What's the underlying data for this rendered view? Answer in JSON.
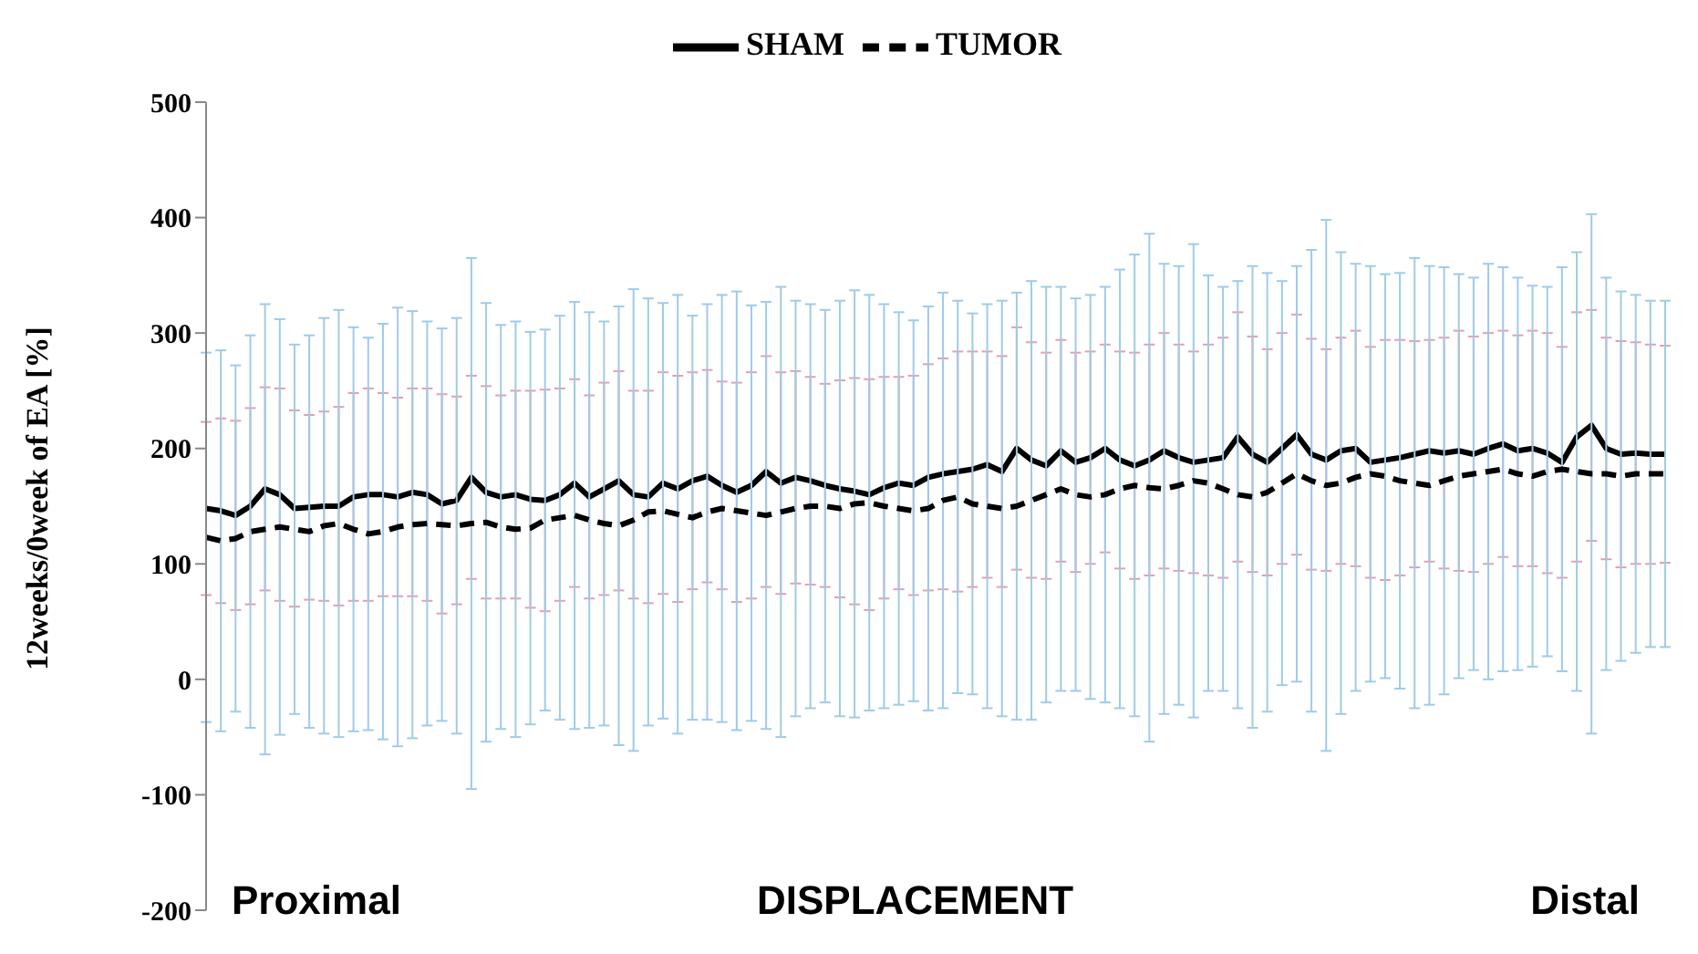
{
  "chart_data": {
    "type": "line",
    "ylabel": "12weeks/0week of EA [%]",
    "categories": [
      null,
      null,
      null,
      null,
      null,
      null,
      null,
      null,
      null,
      null,
      null,
      null,
      null,
      null,
      null,
      null,
      null,
      null,
      null,
      null,
      null,
      null,
      null,
      null,
      null,
      null,
      null,
      null,
      null,
      null,
      null,
      null,
      null,
      null,
      null,
      null,
      null,
      null,
      null,
      null,
      null,
      null,
      null,
      null,
      null,
      null,
      null,
      null,
      null,
      null,
      null,
      null,
      null,
      null,
      null,
      null,
      null,
      null,
      null,
      null,
      null,
      null,
      null,
      null,
      null,
      null,
      null,
      null,
      null,
      null,
      null,
      null,
      null,
      null,
      null,
      null,
      null,
      null,
      null,
      null,
      null,
      null,
      null,
      null,
      null,
      null,
      null,
      null,
      null,
      null,
      null,
      null,
      null,
      null,
      null,
      null,
      null,
      null,
      null,
      null
    ],
    "series": [
      {
        "name": "SHAM",
        "color": "#000000",
        "line_style": "solid",
        "values": [
          148,
          146,
          142,
          150,
          165,
          160,
          148,
          149,
          150,
          150,
          158,
          160,
          160,
          158,
          162,
          160,
          152,
          155,
          175,
          162,
          158,
          160,
          156,
          155,
          160,
          170,
          158,
          165,
          172,
          160,
          158,
          170,
          165,
          172,
          176,
          168,
          162,
          168,
          180,
          170,
          175,
          172,
          168,
          165,
          163,
          160,
          166,
          170,
          168,
          175,
          178,
          180,
          182,
          186,
          180,
          200,
          190,
          185,
          198,
          188,
          192,
          200,
          190,
          185,
          190,
          198,
          192,
          188,
          190,
          192,
          210,
          195,
          188,
          200,
          212,
          195,
          190,
          198,
          200,
          188,
          190,
          192,
          195,
          198,
          196,
          198,
          195,
          200,
          204,
          198,
          200,
          196,
          188,
          210,
          220,
          200,
          195,
          196,
          195,
          195
        ],
        "errors": [
          75,
          80,
          82,
          85,
          88,
          92,
          85,
          80,
          82,
          86,
          90,
          92,
          88,
          86,
          90,
          92,
          95,
          90,
          88,
          92,
          88,
          90,
          94,
          96,
          92,
          90,
          88,
          92,
          95,
          90,
          92,
          96,
          98,
          94,
          92,
          90,
          95,
          98,
          100,
          96,
          92,
          90,
          88,
          94,
          98,
          100,
          96,
          92,
          95,
          98,
          100,
          104,
          102,
          98,
          100,
          105,
          102,
          98,
          96,
          95,
          92,
          90,
          94,
          98,
          100,
          102,
          98,
          96,
          100,
          104,
          108,
          102,
          98,
          100,
          104,
          100,
          96,
          98,
          102,
          100,
          104,
          102,
          98,
          96,
          100,
          104,
          102,
          100,
          98,
          100,
          102,
          104,
          100,
          108,
          100,
          96,
          98,
          96,
          95,
          94
        ]
      },
      {
        "name": "TUMOR",
        "color": "#000000",
        "line_style": "dashed",
        "values": [
          123,
          120,
          122,
          128,
          130,
          132,
          130,
          128,
          133,
          135,
          130,
          126,
          128,
          132,
          134,
          135,
          134,
          133,
          135,
          136,
          132,
          130,
          131,
          138,
          140,
          142,
          138,
          135,
          133,
          138,
          145,
          146,
          143,
          140,
          145,
          148,
          146,
          144,
          142,
          145,
          148,
          150,
          150,
          148,
          152,
          153,
          150,
          148,
          146,
          148,
          155,
          158,
          152,
          150,
          148,
          150,
          155,
          160,
          165,
          160,
          158,
          160,
          165,
          168,
          166,
          165,
          168,
          172,
          170,
          165,
          160,
          158,
          162,
          170,
          178,
          172,
          168,
          170,
          175,
          178,
          176,
          172,
          170,
          168,
          172,
          176,
          178,
          180,
          182,
          178,
          176,
          180,
          182,
          180,
          178,
          178,
          176,
          178,
          178,
          178
        ],
        "errors": [
          160,
          165,
          150,
          170,
          195,
          180,
          160,
          170,
          180,
          185,
          175,
          170,
          180,
          190,
          185,
          175,
          170,
          180,
          230,
          190,
          175,
          180,
          170,
          165,
          175,
          185,
          180,
          175,
          190,
          200,
          185,
          180,
          190,
          175,
          180,
          185,
          190,
          180,
          185,
          195,
          180,
          175,
          170,
          180,
          185,
          180,
          175,
          170,
          165,
          175,
          180,
          170,
          165,
          175,
          180,
          185,
          190,
          180,
          175,
          170,
          175,
          180,
          190,
          200,
          220,
          195,
          190,
          205,
          180,
          175,
          185,
          200,
          190,
          175,
          180,
          200,
          230,
          200,
          185,
          180,
          175,
          180,
          195,
          190,
          185,
          175,
          170,
          180,
          175,
          170,
          165,
          160,
          175,
          190,
          225,
          170,
          160,
          155,
          150,
          150
        ]
      }
    ],
    "ylim": [
      -200,
      500
    ],
    "yticks": [
      -200,
      -100,
      0,
      100,
      200,
      300,
      400,
      500
    ],
    "marker": "none",
    "legend": "top",
    "annotations": [
      "Proximal",
      "DISPLACEMENT",
      "Distal"
    ]
  }
}
